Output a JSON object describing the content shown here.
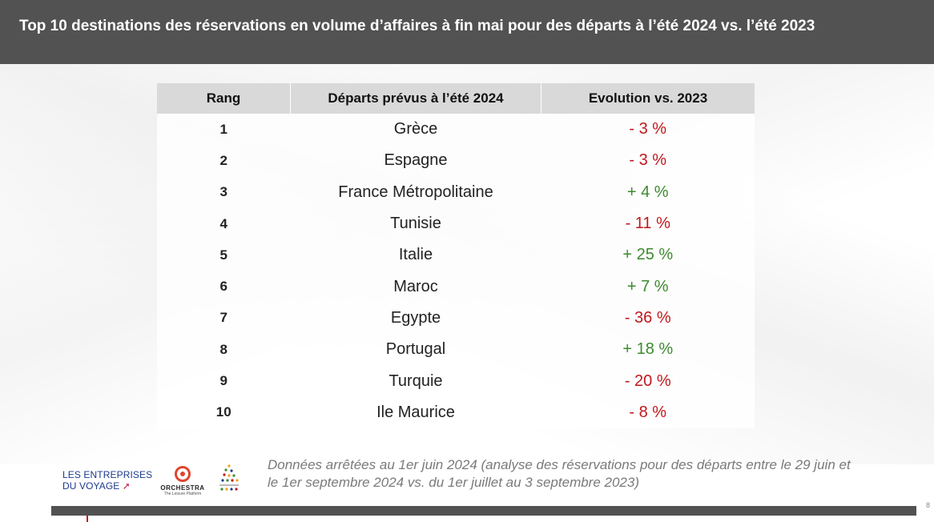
{
  "title": "Top 10 destinations des réservations en volume d’affaires à fin mai pour des départs à l’été 2024 vs. l’été 2023",
  "table": {
    "headers": [
      "Rang",
      "Départs prévus à l’été 2024",
      "Evolution vs. 2023"
    ],
    "rows": [
      {
        "rank": "1",
        "destination": "Grèce",
        "evolution": "- 3 %",
        "trend": "negative"
      },
      {
        "rank": "2",
        "destination": "Espagne",
        "evolution": "- 3 %",
        "trend": "negative"
      },
      {
        "rank": "3",
        "destination": "France Métropolitaine",
        "evolution": "+ 4 %",
        "trend": "positive"
      },
      {
        "rank": "4",
        "destination": "Tunisie",
        "evolution": "- 11 %",
        "trend": "negative"
      },
      {
        "rank": "5",
        "destination": "Italie",
        "evolution": "+ 25 %",
        "trend": "positive"
      },
      {
        "rank": "6",
        "destination": "Maroc",
        "evolution": "+ 7 %",
        "trend": "positive"
      },
      {
        "rank": "7",
        "destination": "Egypte",
        "evolution": "- 36 %",
        "trend": "negative"
      },
      {
        "rank": "8",
        "destination": "Portugal",
        "evolution": "+ 18 %",
        "trend": "positive"
      },
      {
        "rank": "9",
        "destination": "Turquie",
        "evolution": "- 20 %",
        "trend": "negative"
      },
      {
        "rank": "10",
        "destination": "Ile Maurice",
        "evolution": "- 8 %",
        "trend": "negative"
      }
    ]
  },
  "colors": {
    "negative": "#c0181c",
    "positive": "#3c8a2e",
    "header_bar": "#525252"
  },
  "footer": {
    "logo_1_line_1": "LES ENTREPRISES",
    "logo_1_line_2": "DU VOYAGE",
    "logo_2_name": "ORCHESTRA",
    "logo_2_tagline": "The Leisure Platform",
    "note": "Données arrêtées au 1er juin 2024 (analyse des réservations pour des départs entre le 29 juin et le 1er septembre 2024 vs. du 1er juillet au 3 septembre 2023)",
    "page_number": "8"
  }
}
